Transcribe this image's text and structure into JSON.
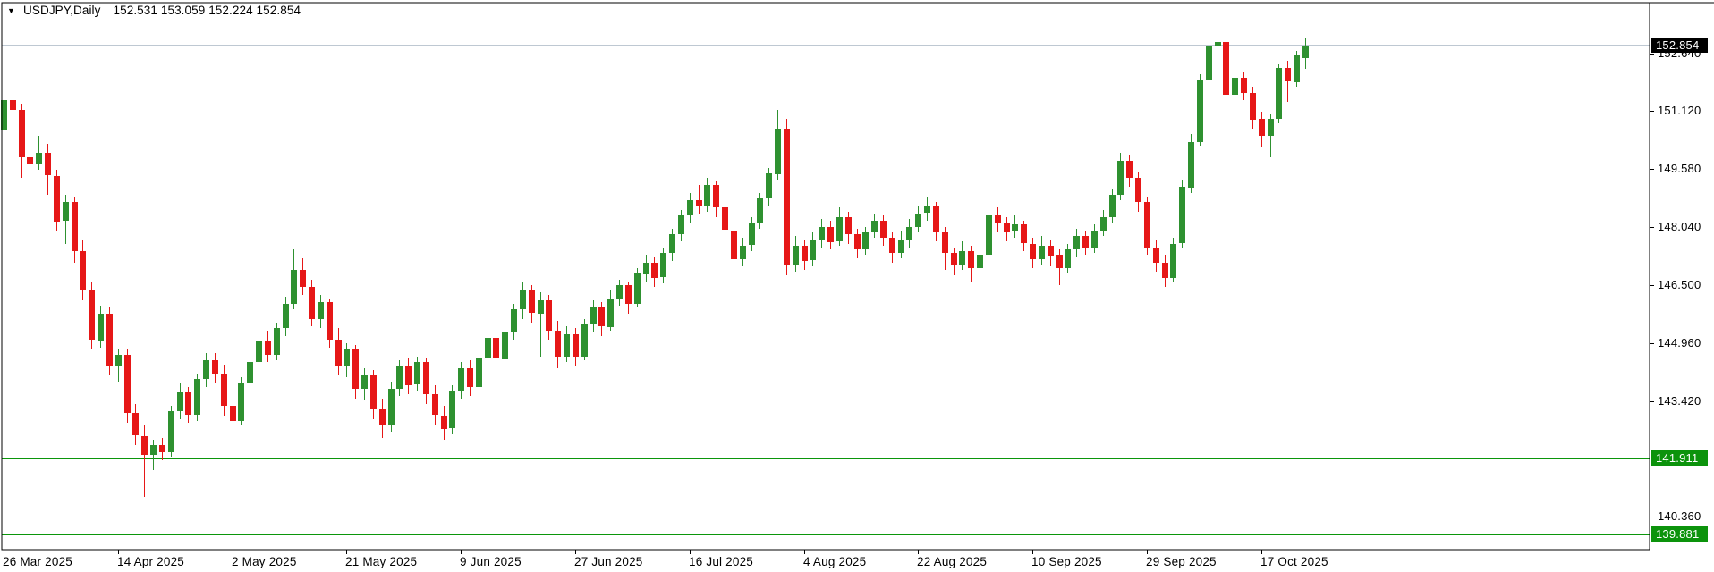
{
  "window": {
    "symbol_menu_icon": "▼",
    "title": "USDJPY,Daily",
    "ohlc_line": "152.531 153.059 152.224 152.854"
  },
  "colors": {
    "background": "#ffffff",
    "border": "#000000",
    "text": "#000000",
    "up": "#2e9130",
    "down": "#e61717",
    "level_line": "#0b960b",
    "bid_line": "#7d92a5",
    "bid_box_bg": "#000000",
    "bid_box_text": "#ffffff",
    "level_box_bg": "#0c930c",
    "level_box_text": "#ffffff"
  },
  "chart_data": {
    "type": "candlestick",
    "symbol": "USDJPY",
    "timeframe": "Daily",
    "last": {
      "open": 152.531,
      "high": 153.059,
      "low": 152.224,
      "close": 152.854
    },
    "current_price": 152.854,
    "bid_label": "152.854",
    "horizontal_lines": [
      {
        "value": 141.911,
        "label": "141.911"
      },
      {
        "value": 139.881,
        "label": "139.881"
      }
    ],
    "y_axis": {
      "labels": [
        "152.640",
        "151.120",
        "149.580",
        "148.040",
        "146.500",
        "144.960",
        "143.420",
        "140.360"
      ],
      "visible_range": [
        139.45,
        153.66
      ],
      "grid": false
    },
    "x_axis": {
      "labels": [
        "26 Mar 2025",
        "14 Apr 2025",
        "2 May 2025",
        "21 May 2025",
        "9 Jun 2025",
        "27 Jun 2025",
        "16 Jul 2025",
        "4 Aug 2025",
        "22 Aug 2025",
        "10 Sep 2025",
        "29 Sep 2025",
        "17 Oct 2025"
      ],
      "candles_per_label": 13
    },
    "candles": [
      [
        150.6,
        151.75,
        150.45,
        151.4
      ],
      [
        151.4,
        151.95,
        150.95,
        151.15
      ],
      [
        151.15,
        151.3,
        149.35,
        149.9
      ],
      [
        149.9,
        150.15,
        149.3,
        149.7
      ],
      [
        149.7,
        150.45,
        149.55,
        150.0
      ],
      [
        150.0,
        150.25,
        148.9,
        149.4
      ],
      [
        149.4,
        149.55,
        147.95,
        148.2
      ],
      [
        148.2,
        148.9,
        147.6,
        148.7
      ],
      [
        148.7,
        148.85,
        147.1,
        147.4
      ],
      [
        147.4,
        147.7,
        146.1,
        146.35
      ],
      [
        146.35,
        146.6,
        144.8,
        145.05
      ],
      [
        145.05,
        145.95,
        144.85,
        145.75
      ],
      [
        145.75,
        145.9,
        144.1,
        144.35
      ],
      [
        144.35,
        144.8,
        143.95,
        144.65
      ],
      [
        144.65,
        144.8,
        142.85,
        143.1
      ],
      [
        143.1,
        143.35,
        142.25,
        142.5
      ],
      [
        142.5,
        142.8,
        140.88,
        142.0
      ],
      [
        142.0,
        142.4,
        141.6,
        142.25
      ],
      [
        142.25,
        142.45,
        141.85,
        142.05
      ],
      [
        142.05,
        143.3,
        141.95,
        143.15
      ],
      [
        143.15,
        143.9,
        142.95,
        143.65
      ],
      [
        143.65,
        143.8,
        142.85,
        143.05
      ],
      [
        143.05,
        144.15,
        142.9,
        144.0
      ],
      [
        144.0,
        144.7,
        143.8,
        144.5
      ],
      [
        144.5,
        144.7,
        143.9,
        144.15
      ],
      [
        144.15,
        144.4,
        143.05,
        143.3
      ],
      [
        143.3,
        143.6,
        142.7,
        142.9
      ],
      [
        142.9,
        144.05,
        142.8,
        143.9
      ],
      [
        143.9,
        144.6,
        143.7,
        144.45
      ],
      [
        144.45,
        145.15,
        144.25,
        145.0
      ],
      [
        145.0,
        145.3,
        144.45,
        144.65
      ],
      [
        144.65,
        145.5,
        144.5,
        145.35
      ],
      [
        145.35,
        146.2,
        145.15,
        146.0
      ],
      [
        146.0,
        147.45,
        145.85,
        146.9
      ],
      [
        146.9,
        147.2,
        146.25,
        146.45
      ],
      [
        146.45,
        146.65,
        145.4,
        145.6
      ],
      [
        145.6,
        146.25,
        145.35,
        146.05
      ],
      [
        146.05,
        146.15,
        144.85,
        145.05
      ],
      [
        145.05,
        145.35,
        144.1,
        144.35
      ],
      [
        144.35,
        144.95,
        144.05,
        144.8
      ],
      [
        144.8,
        144.9,
        143.5,
        143.75
      ],
      [
        143.75,
        144.3,
        143.45,
        144.1
      ],
      [
        144.1,
        144.25,
        142.95,
        143.2
      ],
      [
        143.2,
        143.5,
        142.45,
        142.8
      ],
      [
        142.8,
        143.95,
        142.6,
        143.75
      ],
      [
        143.75,
        144.5,
        143.55,
        144.35
      ],
      [
        144.35,
        144.55,
        143.6,
        143.85
      ],
      [
        143.85,
        144.6,
        143.7,
        144.45
      ],
      [
        144.45,
        144.55,
        143.35,
        143.6
      ],
      [
        143.6,
        143.85,
        142.8,
        143.05
      ],
      [
        143.05,
        143.3,
        142.4,
        142.7
      ],
      [
        142.7,
        143.85,
        142.55,
        143.7
      ],
      [
        143.7,
        144.45,
        143.5,
        144.3
      ],
      [
        144.3,
        144.5,
        143.55,
        143.8
      ],
      [
        143.8,
        144.7,
        143.65,
        144.55
      ],
      [
        144.55,
        145.3,
        144.35,
        145.1
      ],
      [
        145.1,
        145.25,
        144.3,
        144.55
      ],
      [
        144.55,
        145.4,
        144.4,
        145.25
      ],
      [
        145.25,
        146.0,
        145.05,
        145.85
      ],
      [
        145.85,
        146.6,
        145.6,
        146.35
      ],
      [
        146.35,
        146.5,
        145.5,
        145.75
      ],
      [
        145.75,
        146.3,
        144.6,
        146.1
      ],
      [
        146.1,
        146.25,
        145.05,
        145.3
      ],
      [
        145.3,
        145.55,
        144.3,
        144.6
      ],
      [
        144.6,
        145.4,
        144.45,
        145.2
      ],
      [
        145.2,
        145.35,
        144.35,
        144.6
      ],
      [
        144.6,
        145.6,
        144.5,
        145.45
      ],
      [
        145.45,
        146.1,
        145.25,
        145.9
      ],
      [
        145.9,
        146.05,
        145.15,
        145.4
      ],
      [
        145.4,
        146.35,
        145.3,
        146.15
      ],
      [
        146.15,
        146.65,
        145.95,
        146.5
      ],
      [
        146.5,
        146.6,
        145.75,
        146.0
      ],
      [
        146.0,
        146.95,
        145.9,
        146.8
      ],
      [
        146.8,
        147.3,
        146.6,
        147.1
      ],
      [
        147.1,
        147.25,
        146.45,
        146.7
      ],
      [
        146.7,
        147.5,
        146.55,
        147.35
      ],
      [
        147.35,
        148.0,
        147.15,
        147.85
      ],
      [
        147.85,
        148.5,
        147.65,
        148.35
      ],
      [
        148.35,
        148.95,
        148.15,
        148.75
      ],
      [
        148.75,
        149.15,
        148.4,
        148.6
      ],
      [
        148.6,
        149.35,
        148.45,
        149.15
      ],
      [
        149.15,
        149.25,
        148.3,
        148.55
      ],
      [
        148.55,
        148.75,
        147.7,
        147.95
      ],
      [
        147.95,
        148.15,
        146.95,
        147.2
      ],
      [
        147.2,
        147.75,
        147.0,
        147.55
      ],
      [
        147.55,
        148.3,
        147.4,
        148.15
      ],
      [
        148.15,
        148.95,
        148.0,
        148.8
      ],
      [
        148.8,
        149.6,
        148.6,
        149.45
      ],
      [
        149.45,
        151.15,
        149.3,
        150.65
      ],
      [
        150.65,
        150.9,
        146.75,
        147.05
      ],
      [
        147.05,
        147.8,
        146.85,
        147.55
      ],
      [
        147.55,
        147.7,
        146.9,
        147.15
      ],
      [
        147.15,
        147.9,
        147.0,
        147.7
      ],
      [
        147.7,
        148.25,
        147.5,
        148.05
      ],
      [
        148.05,
        148.2,
        147.45,
        147.65
      ],
      [
        147.65,
        148.55,
        147.55,
        148.3
      ],
      [
        148.3,
        148.45,
        147.6,
        147.85
      ],
      [
        147.85,
        148.0,
        147.2,
        147.45
      ],
      [
        147.45,
        148.05,
        147.3,
        147.9
      ],
      [
        147.9,
        148.4,
        147.75,
        148.2
      ],
      [
        148.2,
        148.35,
        147.55,
        147.75
      ],
      [
        147.75,
        147.9,
        147.1,
        147.35
      ],
      [
        147.35,
        147.95,
        147.2,
        147.7
      ],
      [
        147.7,
        148.25,
        147.5,
        148.05
      ],
      [
        148.05,
        148.6,
        147.9,
        148.4
      ],
      [
        148.4,
        148.85,
        148.2,
        148.6
      ],
      [
        148.6,
        148.7,
        147.65,
        147.9
      ],
      [
        147.9,
        148.05,
        146.9,
        147.35
      ],
      [
        147.35,
        147.5,
        146.75,
        147.05
      ],
      [
        147.05,
        147.65,
        146.9,
        147.4
      ],
      [
        147.4,
        147.55,
        146.6,
        146.95
      ],
      [
        146.95,
        147.55,
        146.8,
        147.3
      ],
      [
        147.3,
        148.45,
        147.15,
        148.35
      ],
      [
        148.35,
        148.55,
        147.9,
        148.15
      ],
      [
        148.15,
        148.3,
        147.65,
        147.9
      ],
      [
        147.9,
        148.35,
        147.75,
        148.1
      ],
      [
        148.1,
        148.2,
        147.4,
        147.6
      ],
      [
        147.6,
        147.75,
        146.95,
        147.2
      ],
      [
        147.2,
        147.8,
        147.05,
        147.55
      ],
      [
        147.55,
        147.7,
        147.0,
        147.3
      ],
      [
        147.3,
        147.45,
        146.5,
        146.95
      ],
      [
        146.95,
        147.6,
        146.8,
        147.45
      ],
      [
        147.45,
        148.0,
        147.25,
        147.8
      ],
      [
        147.8,
        147.95,
        147.3,
        147.5
      ],
      [
        147.5,
        148.1,
        147.35,
        147.95
      ],
      [
        147.95,
        148.5,
        147.8,
        148.3
      ],
      [
        148.3,
        149.05,
        148.15,
        148.9
      ],
      [
        148.9,
        150.0,
        148.75,
        149.8
      ],
      [
        149.8,
        149.95,
        149.1,
        149.35
      ],
      [
        149.35,
        149.5,
        148.45,
        148.7
      ],
      [
        148.7,
        148.85,
        147.3,
        147.5
      ],
      [
        147.5,
        147.7,
        146.85,
        147.1
      ],
      [
        147.1,
        147.3,
        146.45,
        146.7
      ],
      [
        146.7,
        147.75,
        146.6,
        147.6
      ],
      [
        147.6,
        149.3,
        147.5,
        149.1
      ],
      [
        149.1,
        150.5,
        148.95,
        150.3
      ],
      [
        150.3,
        152.1,
        150.2,
        151.95
      ],
      [
        151.95,
        153.0,
        151.6,
        152.85
      ],
      [
        152.85,
        153.25,
        152.5,
        152.95
      ],
      [
        152.95,
        153.1,
        151.3,
        151.55
      ],
      [
        151.55,
        152.2,
        151.3,
        152.0
      ],
      [
        152.0,
        152.15,
        151.4,
        151.6
      ],
      [
        151.6,
        151.75,
        150.65,
        150.9
      ],
      [
        150.9,
        151.1,
        150.15,
        150.45
      ],
      [
        150.45,
        151.05,
        149.9,
        150.9
      ],
      [
        150.9,
        152.35,
        150.8,
        152.25
      ],
      [
        152.25,
        152.45,
        151.35,
        151.9
      ],
      [
        151.9,
        152.7,
        151.75,
        152.6
      ],
      [
        152.531,
        153.059,
        152.224,
        152.854
      ]
    ]
  }
}
